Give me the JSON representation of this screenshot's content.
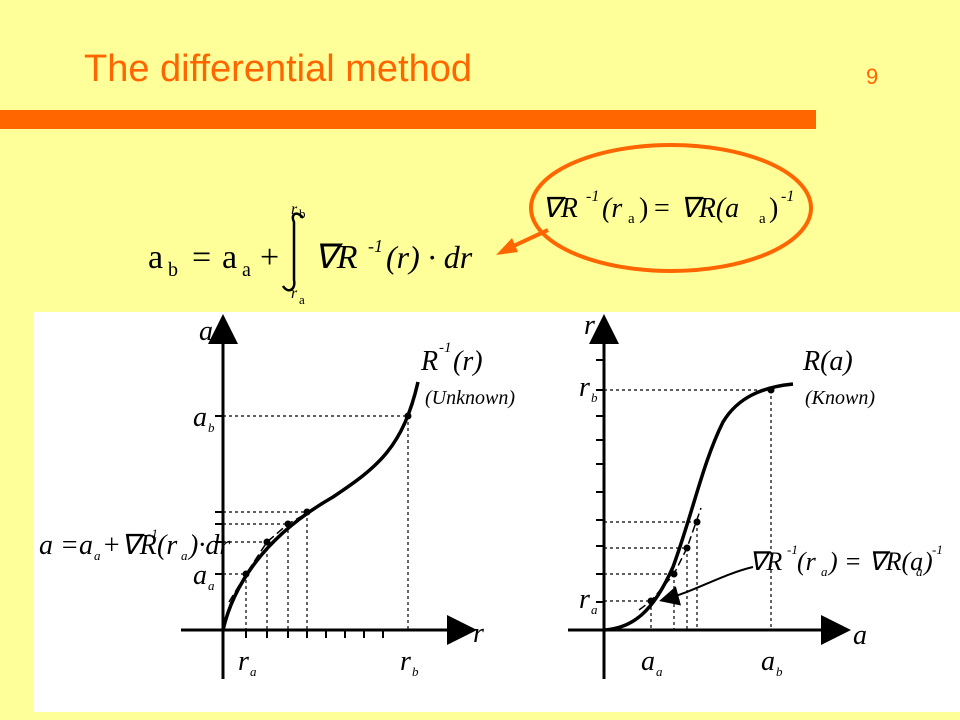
{
  "slide": {
    "title": "The differential method",
    "page_number": "9"
  },
  "main_equation": {
    "lhs": "a",
    "lhs_sub": "b",
    "equals": "=",
    "term1": "a",
    "term1_sub": "a",
    "plus": "+",
    "integral_upper": "r",
    "integral_upper_sub": "b",
    "integral_lower": "r",
    "integral_lower_sub": "a",
    "integrand": "∇R",
    "integrand_sup": "-1",
    "integrand_arg": "(r) · dr"
  },
  "callout_equation": {
    "left": "∇R",
    "left_sup": "-1",
    "left_arg_open": "(r",
    "left_arg_sub": "a",
    "left_arg_close": ")",
    "equals": "=",
    "right": "∇R(a",
    "right_sub": "a",
    "right_close": ")",
    "right_sup": "-1"
  },
  "left_plot": {
    "y_axis_label": "a",
    "x_axis_label": "r",
    "curve_label": "R",
    "curve_label_sup": "-1",
    "curve_label_arg": "(r)",
    "curve_note": "(Unknown)",
    "y_tick_ab": "a",
    "y_tick_ab_sub": "b",
    "y_tick_aa": "a",
    "y_tick_aa_sub": "a",
    "x_tick_ra": "r",
    "x_tick_ra_sub": "a",
    "x_tick_rb": "r",
    "x_tick_rb_sub": "b",
    "update_formula_lhs": "a =",
    "update_formula_a": "a",
    "update_formula_a_sub": "a",
    "update_formula_plus": "+∇R",
    "update_formula_sup": "-1",
    "update_formula_arg": "(r",
    "update_formula_arg_sub": "a",
    "update_formula_end": ")·dr"
  },
  "right_plot": {
    "y_axis_label": "r",
    "x_axis_label": "a",
    "curve_label": "R(a)",
    "curve_note": "(Known)",
    "y_tick_rb": "r",
    "y_tick_rb_sub": "b",
    "y_tick_ra": "r",
    "y_tick_ra_sub": "a",
    "x_tick_aa": "a",
    "x_tick_aa_sub": "a",
    "x_tick_ab": "a",
    "x_tick_ab_sub": "b",
    "relation_left": "∇R",
    "relation_left_sup": "-1",
    "relation_left_arg": "(r",
    "relation_left_arg_sub": "a",
    "relation_mid": ") = ∇R(a",
    "relation_mid_sub": "a",
    "relation_end": ")",
    "relation_sup": "-1"
  },
  "colors": {
    "background": "#ffff99",
    "accent": "#ff6600",
    "figure_bg": "#ffffff",
    "ink": "#000000"
  }
}
